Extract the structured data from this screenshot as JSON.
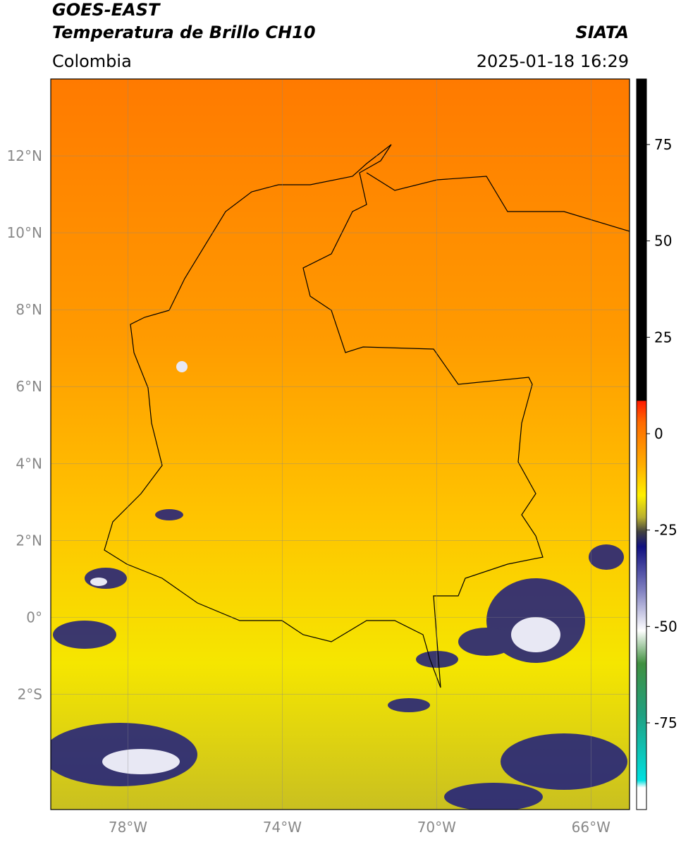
{
  "header": {
    "title": "GOES-EAST",
    "subtitle": "Temperatura de Brillo CH10",
    "source": "SIATA",
    "region": "Colombia",
    "datetime": "2025-01-18 16:29"
  },
  "map": {
    "lonlim": [
      -80,
      -65
    ],
    "latlim": [
      -5,
      14
    ],
    "lonticks": [
      {
        "value": -78,
        "label": "78°W"
      },
      {
        "value": -74,
        "label": "74°W"
      },
      {
        "value": -70,
        "label": "70°W"
      },
      {
        "value": -66,
        "label": "66°W"
      }
    ],
    "latticks": [
      {
        "value": 12,
        "label": "12°N"
      },
      {
        "value": 10,
        "label": "10°N"
      },
      {
        "value": 8,
        "label": "8°N"
      },
      {
        "value": 6,
        "label": "6°N"
      },
      {
        "value": 4,
        "label": "4°N"
      },
      {
        "value": 2,
        "label": "2°N"
      },
      {
        "value": 0,
        "label": "0°"
      },
      {
        "value": -2,
        "label": "2°S"
      }
    ]
  },
  "colorbar": {
    "lim": [
      -97.5,
      92
    ],
    "ticks": [
      75,
      50,
      25,
      0,
      -25,
      -50,
      -75
    ]
  }
}
